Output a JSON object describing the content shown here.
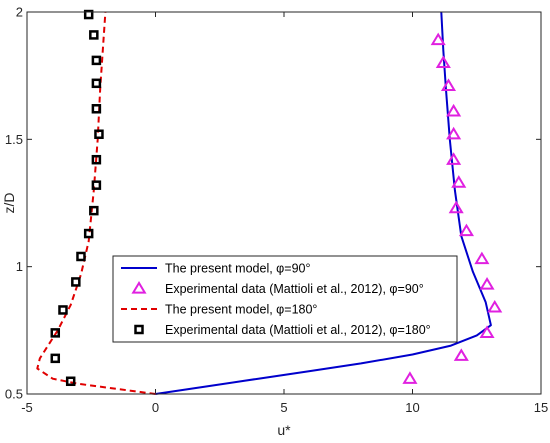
{
  "chart_data": {
    "type": "line",
    "xlabel": "u*",
    "ylabel": "z/D",
    "xlim": [
      -5,
      15
    ],
    "ylim": [
      0.5,
      2
    ],
    "x_ticks": [
      "-5",
      "0",
      "5",
      "10",
      "15"
    ],
    "y_ticks": [
      "0.5",
      "1",
      "1.5",
      "2"
    ],
    "legend_position": "center",
    "series": [
      {
        "name": "The present model, φ=90°",
        "style": "solid-line",
        "color": "#0000cc",
        "x": [
          0,
          2,
          4,
          6,
          8,
          10,
          11.5,
          12.5,
          13.05,
          12.85,
          12.35,
          11.9,
          11.65,
          11.45,
          11.3,
          11.2,
          11.12
        ],
        "y": [
          0.5,
          0.53,
          0.56,
          0.59,
          0.62,
          0.655,
          0.69,
          0.73,
          0.77,
          0.86,
          0.98,
          1.12,
          1.3,
          1.5,
          1.7,
          1.85,
          2.0
        ]
      },
      {
        "name": "Experimental data (Mattioli et al., 2012), φ=90°",
        "style": "triangle-markers",
        "color": "#e020e0",
        "x": [
          9.9,
          11.9,
          12.9,
          13.2,
          12.9,
          12.7,
          12.1,
          11.7,
          11.8,
          11.6,
          11.6,
          11.6,
          11.4,
          11.2,
          11.0
        ],
        "y": [
          0.56,
          0.65,
          0.74,
          0.84,
          0.93,
          1.03,
          1.14,
          1.23,
          1.33,
          1.42,
          1.52,
          1.61,
          1.71,
          1.8,
          1.89
        ]
      },
      {
        "name": "The present model, φ=180°",
        "style": "dashed-line",
        "color": "#e00000",
        "x": [
          0,
          -1.5,
          -3.0,
          -4.0,
          -4.6,
          -4.5,
          -3.8,
          -3.3,
          -2.9,
          -2.6,
          -2.4,
          -2.25,
          -2.15,
          -2.05,
          -1.95
        ],
        "y": [
          0.5,
          0.52,
          0.54,
          0.56,
          0.6,
          0.64,
          0.75,
          0.85,
          0.97,
          1.1,
          1.3,
          1.5,
          1.7,
          1.85,
          2.0
        ]
      },
      {
        "name": "Experimental data (Mattioli et al., 2012), φ=180°",
        "style": "square-markers",
        "color": "#000000",
        "x": [
          -3.3,
          -3.9,
          -3.9,
          -3.6,
          -3.1,
          -2.9,
          -2.6,
          -2.4,
          -2.3,
          -2.3,
          -2.2,
          -2.3,
          -2.3,
          -2.3,
          -2.4,
          -2.6
        ],
        "y": [
          0.55,
          0.64,
          0.74,
          0.83,
          0.94,
          1.04,
          1.13,
          1.22,
          1.32,
          1.42,
          1.52,
          1.62,
          1.72,
          1.81,
          1.91,
          1.99
        ]
      }
    ]
  }
}
